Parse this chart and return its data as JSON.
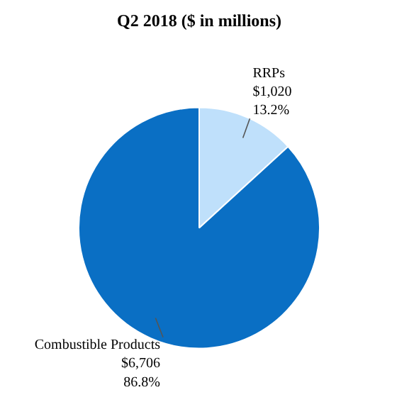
{
  "chart_data": {
    "type": "pie",
    "title": "Q2 2018 ($ in millions)",
    "categories": [
      "RRPs",
      "Combustible Products"
    ],
    "values": [
      1020,
      6706
    ],
    "colors": [
      "#bfe0fb",
      "#0a6fc4"
    ],
    "value_labels": [
      "$1,020\n13.2%",
      "$6,706\n86.8%"
    ]
  }
}
